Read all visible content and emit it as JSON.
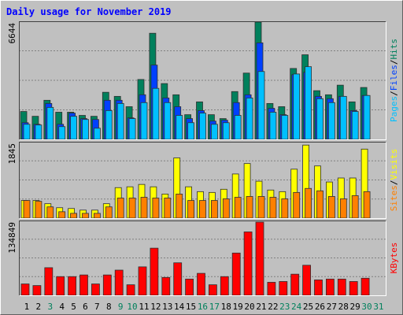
{
  "legend_separator": "/",
  "chart_data": [
    {
      "type": "bar",
      "title": "Daily usage for November 2019",
      "ylim": [
        0,
        6644
      ],
      "yticks": [
        6644
      ],
      "grid": true,
      "series": [
        {
          "name": "Hits",
          "color": "#00805c",
          "values": [
            1570,
            1300,
            2200,
            1530,
            1530,
            1350,
            1300,
            2650,
            2420,
            1840,
            3370,
            5970,
            3140,
            2510,
            1390,
            2110,
            1390,
            1170,
            2690,
            3730,
            6600,
            2020,
            1840,
            3990,
            4760,
            2740,
            2510,
            3050,
            2110,
            2920,
            null
          ]
        },
        {
          "name": "Files",
          "color": "#0040ff",
          "values": [
            940,
            850,
            2020,
            850,
            1480,
            1170,
            1120,
            2200,
            2200,
            1210,
            2510,
            4180,
            2330,
            1840,
            1170,
            1620,
            1030,
            1080,
            2070,
            2510,
            5430,
            1750,
            1390,
            3640,
            3770,
            2420,
            2290,
            2420,
            1620,
            2470,
            null
          ]
        },
        {
          "name": "Pages",
          "color": "#00c0ff",
          "values": [
            850,
            810,
            1800,
            720,
            1300,
            1120,
            630,
            1620,
            2020,
            1170,
            2070,
            2870,
            2070,
            1350,
            940,
            1480,
            850,
            940,
            1350,
            2330,
            3820,
            1530,
            1350,
            3680,
            4090,
            2290,
            2070,
            2420,
            1570,
            2470,
            null
          ]
        }
      ]
    },
    {
      "type": "bar",
      "ylim": [
        0,
        1845
      ],
      "yticks": [
        1845
      ],
      "grid": true,
      "series": [
        {
          "name": "Visits",
          "color": "#ffff00",
          "values": [
            427,
            427,
            349,
            252,
            233,
            194,
            194,
            349,
            737,
            757,
            815,
            757,
            582,
            1455,
            757,
            640,
            621,
            698,
            1067,
            1319,
            892,
            679,
            640,
            1183,
            1765,
            1261,
            873,
            970,
            970,
            1668,
            null
          ]
        },
        {
          "name": "Sites",
          "color": "#ff8000",
          "values": [
            427,
            407,
            272,
            155,
            116,
            116,
            116,
            272,
            485,
            485,
            504,
            485,
            485,
            582,
            427,
            427,
            427,
            466,
            504,
            524,
            524,
            504,
            466,
            621,
            718,
            660,
            524,
            466,
            543,
            640,
            null
          ]
        }
      ]
    },
    {
      "type": "bar",
      "ylim": [
        0,
        134849
      ],
      "yticks": [
        134849
      ],
      "grid": true,
      "categories": [
        "1",
        "2",
        "3",
        "4",
        "5",
        "6",
        "7",
        "8",
        "9",
        "10",
        "11",
        "12",
        "13",
        "14",
        "15",
        "16",
        "17",
        "18",
        "19",
        "20",
        "21",
        "22",
        "23",
        "24",
        "25",
        "26",
        "27",
        "28",
        "29",
        "30",
        "31"
      ],
      "category_colors": [
        "#000000",
        "#000000",
        "#00805c",
        "#000000",
        "#000000",
        "#000000",
        "#000000",
        "#000000",
        "#00805c",
        "#00805c",
        "#000000",
        "#000000",
        "#000000",
        "#000000",
        "#000000",
        "#00805c",
        "#00805c",
        "#000000",
        "#000000",
        "#000000",
        "#000000",
        "#000000",
        "#00805c",
        "#00805c",
        "#000000",
        "#000000",
        "#000000",
        "#000000",
        "#000000",
        "#00805c",
        "#00805c"
      ],
      "series": [
        {
          "name": "KBytes",
          "color": "#ff0000",
          "values": [
            20500,
            17600,
            49800,
            33700,
            33700,
            36700,
            20500,
            36700,
            45400,
            19000,
            51300,
            85000,
            32200,
            58600,
            29300,
            39600,
            19000,
            33700,
            76200,
            114300,
            131900,
            23500,
            24900,
            38100,
            54200,
            27800,
            29300,
            29300,
            24900,
            30800,
            null
          ]
        }
      ]
    }
  ]
}
